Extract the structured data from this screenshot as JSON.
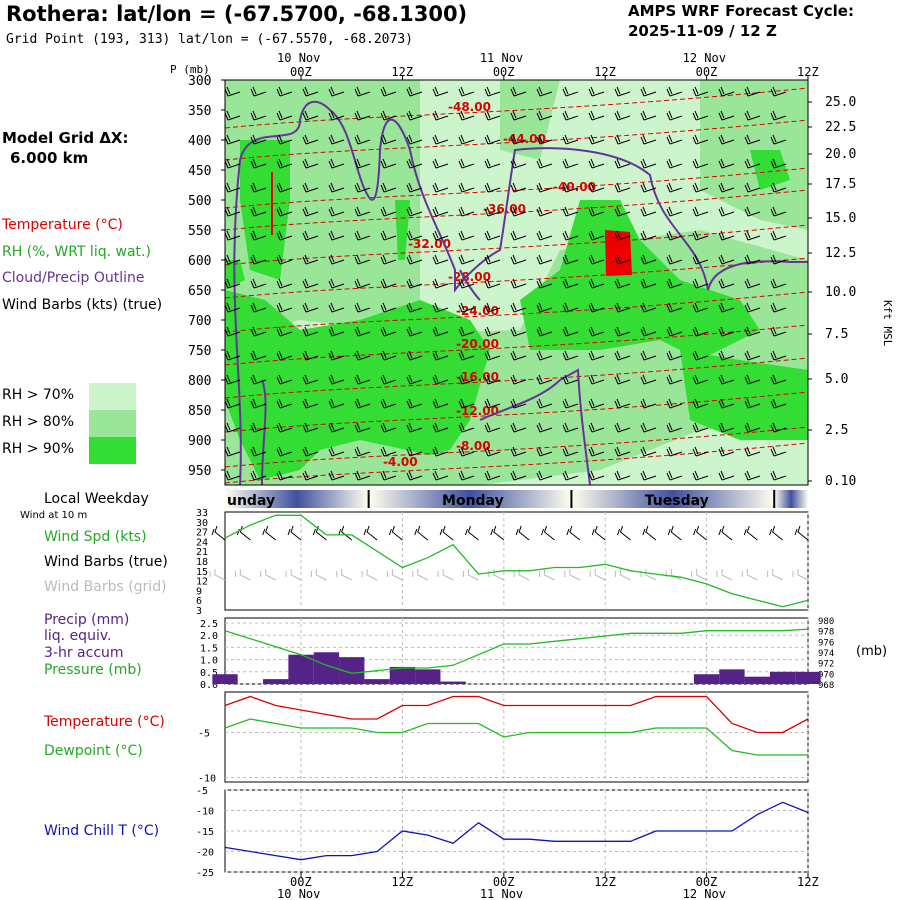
{
  "header": {
    "title": "Rothera:  lat/lon = (-67.5700, -68.1300)",
    "subtitle": "Grid Point (193, 313) lat/lon = (-67.5570, -68.2073)",
    "cycle_line1": "AMPS WRF Forecast Cycle:",
    "cycle_line2": "2025-11-09 / 12  Z"
  },
  "model_grid": {
    "line1": "Model Grid ΔX:",
    "line2": "6.000 km"
  },
  "legend": {
    "temperature": "Temperature (°C)",
    "rh": "RH (%, WRT liq. wat.)",
    "cloud": "Cloud/Precip Outline",
    "wind": "Wind Barbs (kts) (true)",
    "rh70": "RH > 70%",
    "rh80": "RH > 80%",
    "rh90": "RH > 90%"
  },
  "colors": {
    "rh70": "#ccf5cc",
    "rh80": "#99e699",
    "rh90": "#33dd33",
    "temperature": "#dd0000",
    "cloud": "#663399",
    "green": "#22bb22",
    "purple": "#552288",
    "blue": "#1111bb",
    "grid": "#aaaaaa"
  },
  "time_axis": {
    "top_labels": [
      {
        "top": "10 Nov",
        "bottom": "00Z"
      },
      {
        "top": "",
        "bottom": "12Z"
      },
      {
        "top": "11 Nov",
        "bottom": "00Z"
      },
      {
        "top": "",
        "bottom": "12Z"
      },
      {
        "top": "12 Nov",
        "bottom": "00Z"
      },
      {
        "top": "",
        "bottom": "12Z"
      }
    ],
    "hours": [
      0,
      12,
      24,
      36,
      48,
      60
    ],
    "start_hour": -9,
    "end_hour": 60
  },
  "weekday_bar": {
    "title": "Local Weekday",
    "sublabel": "Wind at 10 m",
    "days": [
      "unday",
      "Monday",
      "Tuesday"
    ]
  },
  "chart_data": [
    {
      "type": "heatmap",
      "title": "Vertical cross-section",
      "ylabel": "P (mb)",
      "yticks": [
        "300",
        "350",
        "400",
        "450",
        "500",
        "550",
        "600",
        "650",
        "700",
        "750",
        "800",
        "850",
        "900",
        "950"
      ],
      "right_axis_label": "Kft MSL",
      "right_ticks": [
        "25.0",
        "22.5",
        "20.0",
        "17.5",
        "15.0",
        "12.5",
        "10.0",
        "7.5",
        "5.0",
        "2.5",
        "0.10"
      ],
      "isotherm_labels": [
        "-48.00",
        "-44.00",
        "-40.00",
        "-36.00",
        "-32.00",
        "-28.00",
        "-24.00",
        "-20.00",
        "-16.00",
        "-12.00",
        "-8.00",
        "-4.00"
      ]
    },
    {
      "type": "line",
      "title": "Wind Spd (kts)",
      "labels": {
        "spd": "Wind Spd (kts)",
        "barbs_true": "Wind Barbs (true)",
        "barbs_grid": "Wind Barbs (grid)"
      },
      "yticks": [
        "33",
        "30",
        "27",
        "24",
        "21",
        "18",
        "15",
        "12",
        "9",
        "6",
        "3"
      ],
      "ylim": [
        3,
        33
      ],
      "x": [
        -9,
        -6,
        -3,
        0,
        3,
        6,
        9,
        12,
        15,
        18,
        21,
        24,
        27,
        30,
        33,
        36,
        39,
        42,
        45,
        48,
        51,
        54,
        57,
        60
      ],
      "values": [
        25,
        29,
        32,
        32,
        26,
        26,
        21,
        16,
        19,
        23,
        14,
        15,
        15,
        16,
        16,
        17,
        15,
        14,
        13,
        11,
        8,
        6,
        4,
        6
      ]
    },
    {
      "type": "bar",
      "title": "Precip (mm) / Pressure (mb)",
      "labels": {
        "precip": "Precip (mm)",
        "liq": "liq. equiv.",
        "accum": "3-hr accum",
        "pressure": "Pressure (mb)"
      },
      "yticks_left": [
        "2.5",
        "2.0",
        "1.5",
        "1.0",
        "0.5",
        "0.0"
      ],
      "yticks_right": [
        "980",
        "978",
        "976",
        "974",
        "972",
        "970",
        "968"
      ],
      "right_unit": "(mb)",
      "ylim": [
        0,
        2.5
      ],
      "ylim_right": [
        968,
        980
      ],
      "x": [
        -9,
        -6,
        -3,
        0,
        3,
        6,
        9,
        12,
        15,
        18,
        21,
        24,
        27,
        30,
        33,
        36,
        39,
        42,
        45,
        48,
        51,
        54,
        57,
        60
      ],
      "precip": [
        0.4,
        0.0,
        0.2,
        1.2,
        1.3,
        1.1,
        0.2,
        0.7,
        0.6,
        0.1,
        0.0,
        0.0,
        0.0,
        0.0,
        0.0,
        0.0,
        0.0,
        0.0,
        0.0,
        0.4,
        0.6,
        0.3,
        0.5,
        0.5
      ],
      "pressure": [
        978,
        976.5,
        975,
        973.5,
        971.5,
        970,
        970.5,
        971,
        971,
        971.5,
        973.5,
        975.5,
        975.5,
        976,
        976.5,
        977,
        977.5,
        977.5,
        977.5,
        978,
        978,
        978,
        978,
        978.3
      ]
    },
    {
      "type": "line",
      "title": "Temperature / Dewpoint",
      "labels": {
        "temp": "Temperature (°C)",
        "dew": "Dewpoint (°C)"
      },
      "yticks": [
        "-5",
        "-10"
      ],
      "ylim": [
        -10.5,
        -0.5
      ],
      "x": [
        -9,
        -6,
        -3,
        0,
        3,
        6,
        9,
        12,
        15,
        18,
        21,
        24,
        27,
        30,
        33,
        36,
        39,
        42,
        45,
        48,
        51,
        54,
        57,
        60
      ],
      "temperature": [
        -2,
        -1,
        -2,
        -2.5,
        -3,
        -3.5,
        -3.5,
        -2,
        -2,
        -1,
        -1,
        -2,
        -2,
        -2,
        -2,
        -2,
        -2,
        -1,
        -1,
        -1,
        -4,
        -5,
        -5,
        -3.5
      ],
      "dewpoint": [
        -4.5,
        -3.5,
        -4,
        -4.5,
        -4.5,
        -4.5,
        -5,
        -5,
        -4,
        -4,
        -4,
        -5.5,
        -5,
        -5,
        -5,
        -5,
        -5,
        -4.5,
        -4.5,
        -4.5,
        -7,
        -7.5,
        -7.5,
        -7.5
      ]
    },
    {
      "type": "line",
      "title": "Wind Chill T (°C)",
      "labels": {
        "chill": "Wind Chill T (°C)"
      },
      "yticks": [
        "-5",
        "-10",
        "-15",
        "-20",
        "-25"
      ],
      "ylim": [
        -25,
        -5
      ],
      "x": [
        -9,
        -6,
        -3,
        0,
        3,
        6,
        9,
        12,
        15,
        18,
        21,
        24,
        27,
        30,
        33,
        36,
        39,
        42,
        45,
        48,
        51,
        54,
        57,
        60
      ],
      "values": [
        -19,
        -20,
        -21,
        -22,
        -21,
        -21,
        -20,
        -15,
        -16,
        -18,
        -13,
        -17,
        -17,
        -17.5,
        -17.5,
        -17.5,
        -17.5,
        -15,
        -15,
        -15,
        -15,
        -11,
        -8,
        -10.5
      ]
    }
  ]
}
